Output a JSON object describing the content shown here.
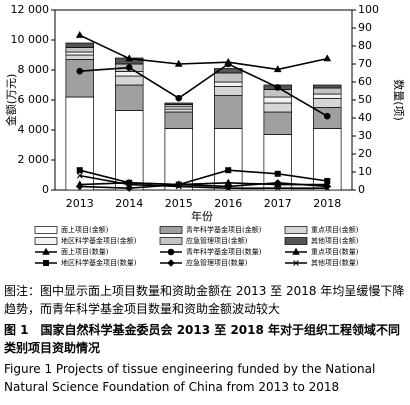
{
  "chart_data": {
    "type": "bar",
    "categories": [
      "2013",
      "2014",
      "2015",
      "2016",
      "2017",
      "2018"
    ],
    "x_label": "年份",
    "y_label": "金额(万元)",
    "y2_label": "数量(项)",
    "ylim": [
      0,
      12000
    ],
    "yticks": [
      0,
      {
        "value": 2000,
        "label": "2 000"
      },
      {
        "value": 4000,
        "label": "4 000"
      },
      {
        "value": 6000,
        "label": "6 000"
      },
      {
        "value": 8000,
        "label": "8 000"
      },
      {
        "value": 10000,
        "label": "10 000"
      },
      {
        "value": 12000,
        "label": "12 000"
      }
    ],
    "y2lim": [
      0,
      100
    ],
    "y2ticks": [
      0,
      10,
      20,
      30,
      40,
      50,
      60,
      70,
      80,
      90,
      100
    ],
    "series": [
      {
        "name": "面上项目(金额)",
        "type": "bar",
        "color": "#ffffff",
        "values": [
          6200,
          5300,
          4100,
          4100,
          3700,
          4100
        ]
      },
      {
        "name": "青年科学基金项目(金额)",
        "type": "bar",
        "color": "#a0a0a0",
        "values": [
          2500,
          1700,
          1100,
          2200,
          1500,
          1400
        ]
      },
      {
        "name": "重点项目(金额)",
        "type": "bar",
        "color": "#d6d6d6",
        "values": [
          300,
          600,
          200,
          600,
          600,
          600
        ]
      },
      {
        "name": "地区科学基金项目(金额)",
        "type": "bar",
        "color": "#f2f2f2",
        "values": [
          200,
          300,
          150,
          300,
          400,
          300
        ]
      },
      {
        "name": "应急管理项目(金额)",
        "type": "bar",
        "color": "#c4c4c4",
        "values": [
          300,
          500,
          150,
          600,
          500,
          400
        ]
      },
      {
        "name": "其他项目(金额)",
        "type": "bar",
        "color": "#555555",
        "values": [
          300,
          400,
          100,
          300,
          300,
          200
        ]
      },
      {
        "name": "面上项目(数量)",
        "type": "line",
        "axis": "y2",
        "color": "#000000",
        "values": [
          86,
          73,
          70,
          71,
          67,
          73
        ]
      },
      {
        "name": "青年科学基金项目(数量)",
        "type": "line",
        "axis": "y2",
        "color": "#000000",
        "values": [
          66,
          68,
          51,
          70,
          57,
          41
        ]
      },
      {
        "name": "重点项目(数量)",
        "type": "line",
        "axis": "y2",
        "color": "#000000",
        "values": [
          3,
          4,
          3,
          4,
          3,
          3
        ]
      },
      {
        "name": "地区科学基金项目(数量)",
        "type": "line",
        "axis": "y2",
        "color": "#000000",
        "values": [
          11,
          4,
          3,
          11,
          9,
          5
        ]
      },
      {
        "name": "应急管理项目(数量)",
        "type": "line",
        "axis": "y2",
        "color": "#000000",
        "values": [
          2,
          1,
          3,
          2,
          4,
          2
        ]
      },
      {
        "name": "其他项目(数量)",
        "type": "line",
        "axis": "y2",
        "color": "#000000",
        "values": [
          8,
          3,
          2,
          1,
          1,
          1
        ]
      }
    ]
  },
  "caption": {
    "note": "图注：图中显示面上项目数量和资助金额在 2013 至 2018 年均呈缓慢下降趋势，而青年科学基金项目数量和资助金额波动较大",
    "title_cn": "图 1　国家自然科学基金委员会 2013 至 2018 年对于组织工程领域不同类别项目资助情况",
    "title_en": "Figure 1    Projects of tissue engineering funded by the National Natural Science Foundation of China from 2013 to 2018"
  }
}
